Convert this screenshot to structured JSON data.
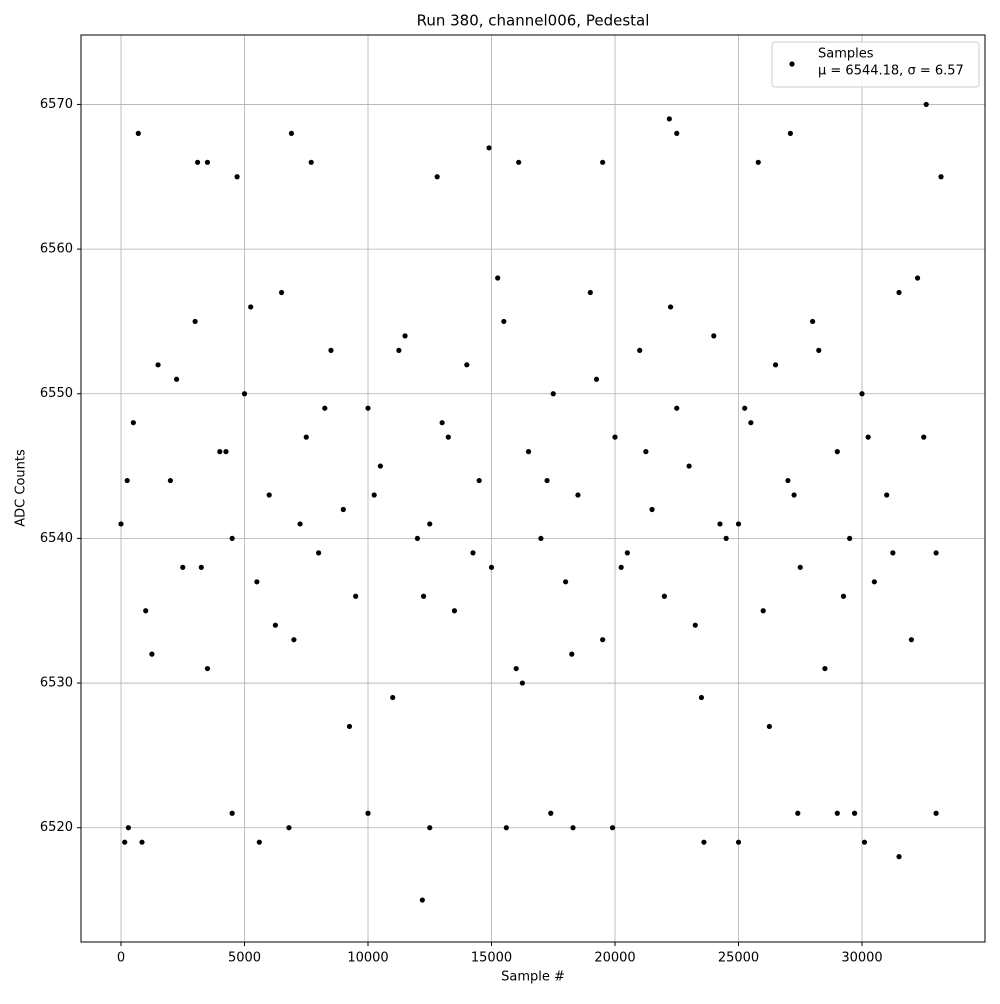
{
  "chart_data": {
    "type": "scatter",
    "title": "Run 380, channel006, Pedestal",
    "x_label": "Sample #",
    "y_label": "ADC Counts",
    "xlim": [
      -1620,
      34980
    ],
    "ylim": [
      6512.1,
      6574.8
    ],
    "xticks": [
      0,
      5000,
      10000,
      15000,
      20000,
      25000,
      30000
    ],
    "yticks": [
      6520,
      6530,
      6540,
      6550,
      6560,
      6570
    ],
    "grid": true,
    "legend": "upper right",
    "series": [
      {
        "name": "Samples",
        "label": "μ = 6544.18, σ = 6.57",
        "color": "#000000",
        "x": [
          0,
          500,
          1000,
          1500,
          2000,
          2500,
          3000,
          3500,
          4000,
          4500,
          5000,
          5500,
          6000,
          6500,
          7000,
          7500,
          8000,
          8500,
          9000,
          9500,
          10000,
          10500,
          11000,
          11500,
          12000,
          12500,
          13000,
          13500,
          14000,
          14500,
          15000,
          15500,
          16000,
          16500,
          17000,
          17500,
          18000,
          18500,
          19000,
          19500,
          20000,
          20500,
          21000,
          21500,
          22000,
          22500,
          23000,
          23500,
          24000,
          24500,
          25000,
          25500,
          26000,
          26500,
          27000,
          27500,
          28000,
          28500,
          29000,
          29500,
          30000,
          30500,
          31000,
          31500,
          32000,
          32500,
          33000,
          250,
          1250,
          2250,
          3250,
          4250,
          5250,
          6250,
          7250,
          8250,
          9250,
          10250,
          11250,
          12250,
          13250,
          14250,
          15250,
          16250,
          17250,
          18250,
          19250,
          20250,
          21250,
          22250,
          23250,
          24250,
          25250,
          26250,
          27250,
          28250,
          29250,
          30250,
          31250,
          32250,
          700,
          6900,
          22200,
          27100,
          32600,
          12200,
          31500,
          6800,
          15600,
          18300,
          19900,
          300,
          150,
          850,
          5600,
          23600,
          25000,
          30100,
          14900,
          22500,
          16100,
          7700,
          3100,
          3500,
          19500,
          25800,
          12800,
          4700,
          33200,
          12500,
          10000,
          4500,
          27400,
          33000,
          17400,
          29000,
          29700
        ],
        "values": [
          6541,
          6548,
          6535,
          6552,
          6544,
          6538,
          6555,
          6531,
          6546,
          6540,
          6550,
          6537,
          6543,
          6557,
          6533,
          6547,
          6539,
          6553,
          6542,
          6536,
          6549,
          6545,
          6529,
          6554,
          6540,
          6541,
          6548,
          6535,
          6552,
          6544,
          6538,
          6555,
          6531,
          6546,
          6540,
          6550,
          6537,
          6543,
          6557,
          6533,
          6547,
          6539,
          6553,
          6542,
          6536,
          6549,
          6545,
          6529,
          6554,
          6540,
          6541,
          6548,
          6535,
          6552,
          6544,
          6538,
          6555,
          6531,
          6546,
          6540,
          6550,
          6537,
          6543,
          6557,
          6533,
          6547,
          6539,
          6544,
          6532,
          6551,
          6538,
          6546,
          6556,
          6534,
          6541,
          6549,
          6527,
          6543,
          6553,
          6536,
          6547,
          6539,
          6558,
          6530,
          6544,
          6532,
          6551,
          6538,
          6546,
          6556,
          6534,
          6541,
          6549,
          6527,
          6543,
          6553,
          6536,
          6547,
          6539,
          6558,
          6568,
          6568,
          6569,
          6568,
          6570,
          6515,
          6518,
          6520,
          6520,
          6520,
          6520,
          6520,
          6519,
          6519,
          6519,
          6519,
          6519,
          6519,
          6567,
          6568,
          6566,
          6566,
          6566,
          6566,
          6566,
          6566,
          6565,
          6565,
          6565,
          6520,
          6521,
          6521,
          6521,
          6521,
          6521,
          6521,
          6521
        ]
      }
    ]
  }
}
